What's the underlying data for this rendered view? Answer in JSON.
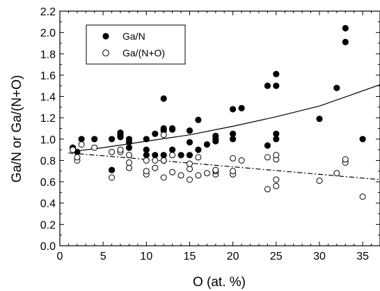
{
  "chart_data": {
    "type": "scatter",
    "xlabel": "O (at. %)",
    "ylabel": "Ga/N or Ga/(N+O)",
    "xlim": [
      0,
      37
    ],
    "ylim": [
      0.0,
      2.2
    ],
    "x_ticks": [
      "0",
      "5",
      "10",
      "15",
      "20",
      "25",
      "30",
      "35"
    ],
    "y_ticks": [
      "0.0",
      "0.2",
      "0.4",
      "0.6",
      "0.8",
      "1.0",
      "1.2",
      "1.4",
      "1.6",
      "1.8",
      "2.0",
      "2.2"
    ],
    "legend_position": "top-left",
    "grid": false,
    "series": [
      {
        "name": "Ga/N",
        "marker": "filled-circle",
        "x": [
          1.5,
          2.0,
          2.5,
          4.0,
          6.0,
          6.0,
          7.0,
          7.0,
          7.0,
          8.0,
          8.0,
          8.0,
          10.0,
          10.0,
          10.0,
          11.0,
          11.0,
          12.0,
          12.0,
          12.0,
          12.0,
          12.0,
          13.0,
          13.0,
          13.0,
          14.0,
          15.0,
          15.0,
          15.0,
          16.0,
          16.0,
          17.0,
          18.0,
          18.0,
          18.0,
          20.0,
          20.0,
          20.0,
          21.0,
          24.0,
          24.0,
          25.0,
          25.0,
          25.0,
          25.0,
          30.0,
          32.0,
          33.0,
          33.0,
          35.0
        ],
        "y": [
          0.92,
          0.88,
          1.0,
          1.0,
          0.71,
          1.0,
          1.02,
          1.04,
          1.06,
          0.92,
          0.97,
          1.0,
          0.85,
          0.9,
          1.0,
          0.85,
          1.05,
          0.8,
          0.85,
          1.08,
          1.1,
          1.38,
          0.9,
          1.09,
          1.1,
          0.85,
          0.85,
          0.97,
          1.08,
          0.9,
          1.18,
          0.95,
          0.98,
          1.0,
          1.03,
          1.0,
          1.05,
          1.28,
          1.29,
          0.94,
          1.5,
          1.0,
          1.05,
          1.5,
          1.61,
          1.19,
          1.48,
          1.91,
          2.04,
          1.0
        ]
      },
      {
        "name": "Ga/(N+O)",
        "marker": "open-circle",
        "x": [
          1.5,
          2.0,
          2.0,
          2.5,
          4.0,
          6.0,
          6.0,
          7.0,
          7.0,
          8.0,
          8.0,
          8.0,
          10.0,
          10.0,
          10.0,
          11.0,
          11.0,
          12.0,
          12.0,
          12.0,
          13.0,
          13.0,
          14.0,
          15.0,
          15.0,
          15.0,
          16.0,
          16.0,
          17.0,
          18.0,
          18.0,
          18.0,
          20.0,
          20.0,
          20.0,
          21.0,
          24.0,
          24.0,
          25.0,
          25.0,
          25.0,
          25.0,
          30.0,
          32.0,
          33.0,
          33.0,
          35.0
        ],
        "y": [
          0.9,
          0.8,
          0.83,
          0.95,
          0.92,
          0.64,
          0.88,
          0.88,
          0.9,
          0.73,
          0.78,
          0.85,
          0.67,
          0.7,
          0.8,
          0.73,
          0.8,
          0.64,
          0.8,
          1.04,
          0.69,
          0.85,
          0.66,
          0.62,
          0.72,
          0.77,
          0.66,
          0.83,
          0.68,
          0.67,
          0.7,
          0.71,
          0.67,
          0.7,
          0.82,
          0.8,
          0.53,
          0.83,
          0.56,
          0.62,
          0.81,
          0.85,
          0.61,
          0.68,
          0.78,
          0.81,
          0.46
        ]
      }
    ],
    "fit_lines": [
      {
        "series": "Ga/N",
        "style": "solid",
        "x": [
          2,
          5,
          10,
          15,
          20,
          25,
          30,
          37
        ],
        "y": [
          0.89,
          0.92,
          0.98,
          1.04,
          1.12,
          1.21,
          1.31,
          1.51
        ]
      },
      {
        "series": "Ga/(N+O)",
        "style": "dash-dot",
        "x": [
          1,
          10,
          20,
          30,
          37
        ],
        "y": [
          0.87,
          0.81,
          0.74,
          0.67,
          0.62
        ]
      }
    ]
  }
}
